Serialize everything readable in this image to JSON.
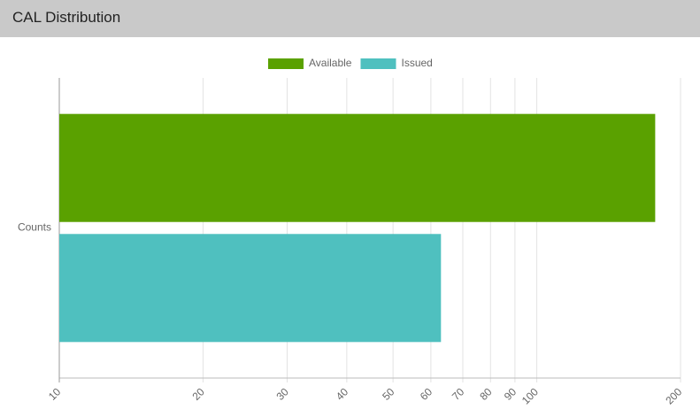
{
  "chart_data": {
    "type": "bar",
    "orientation": "horizontal",
    "title": "CAL Distribution",
    "categories": [
      "Counts"
    ],
    "series": [
      {
        "name": "Available",
        "color": "#5aa100",
        "values": [
          177
        ]
      },
      {
        "name": "Issued",
        "color": "#4fc0bf",
        "values": [
          63
        ]
      }
    ],
    "xscale": "log",
    "xlim": [
      10,
      200
    ],
    "xticks": [
      10,
      20,
      30,
      40,
      50,
      60,
      70,
      80,
      90,
      100,
      200
    ],
    "grid": true,
    "legend": "top"
  }
}
